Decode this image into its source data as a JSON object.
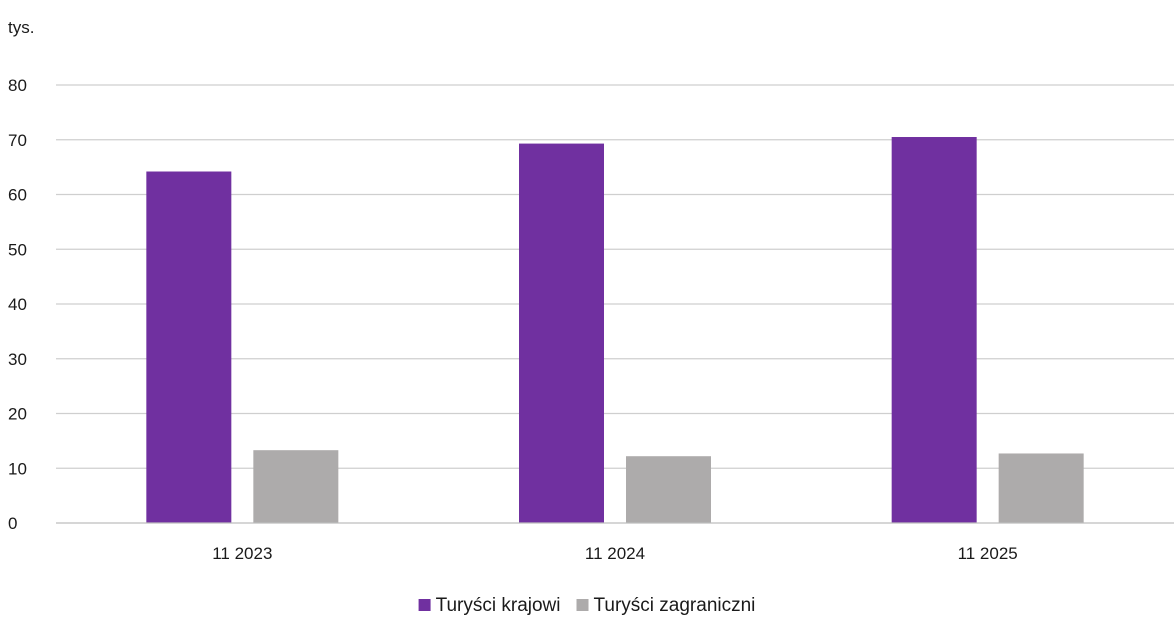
{
  "chart_data": {
    "type": "bar",
    "unit_label": "tys.",
    "categories": [
      "11 2023",
      "11 2024",
      "11 2025"
    ],
    "series": [
      {
        "name": "Turyści krajowi",
        "color": "#7030a0",
        "values": [
          64.2,
          69.3,
          70.5
        ]
      },
      {
        "name": "Turyści zagraniczni",
        "color": "#adabab",
        "values": [
          13.3,
          12.2,
          12.7
        ]
      }
    ],
    "ylim": [
      0,
      80
    ],
    "yticks": [
      0,
      10,
      20,
      30,
      40,
      50,
      60,
      70,
      80
    ],
    "grid": true,
    "legend_position": "bottom"
  }
}
